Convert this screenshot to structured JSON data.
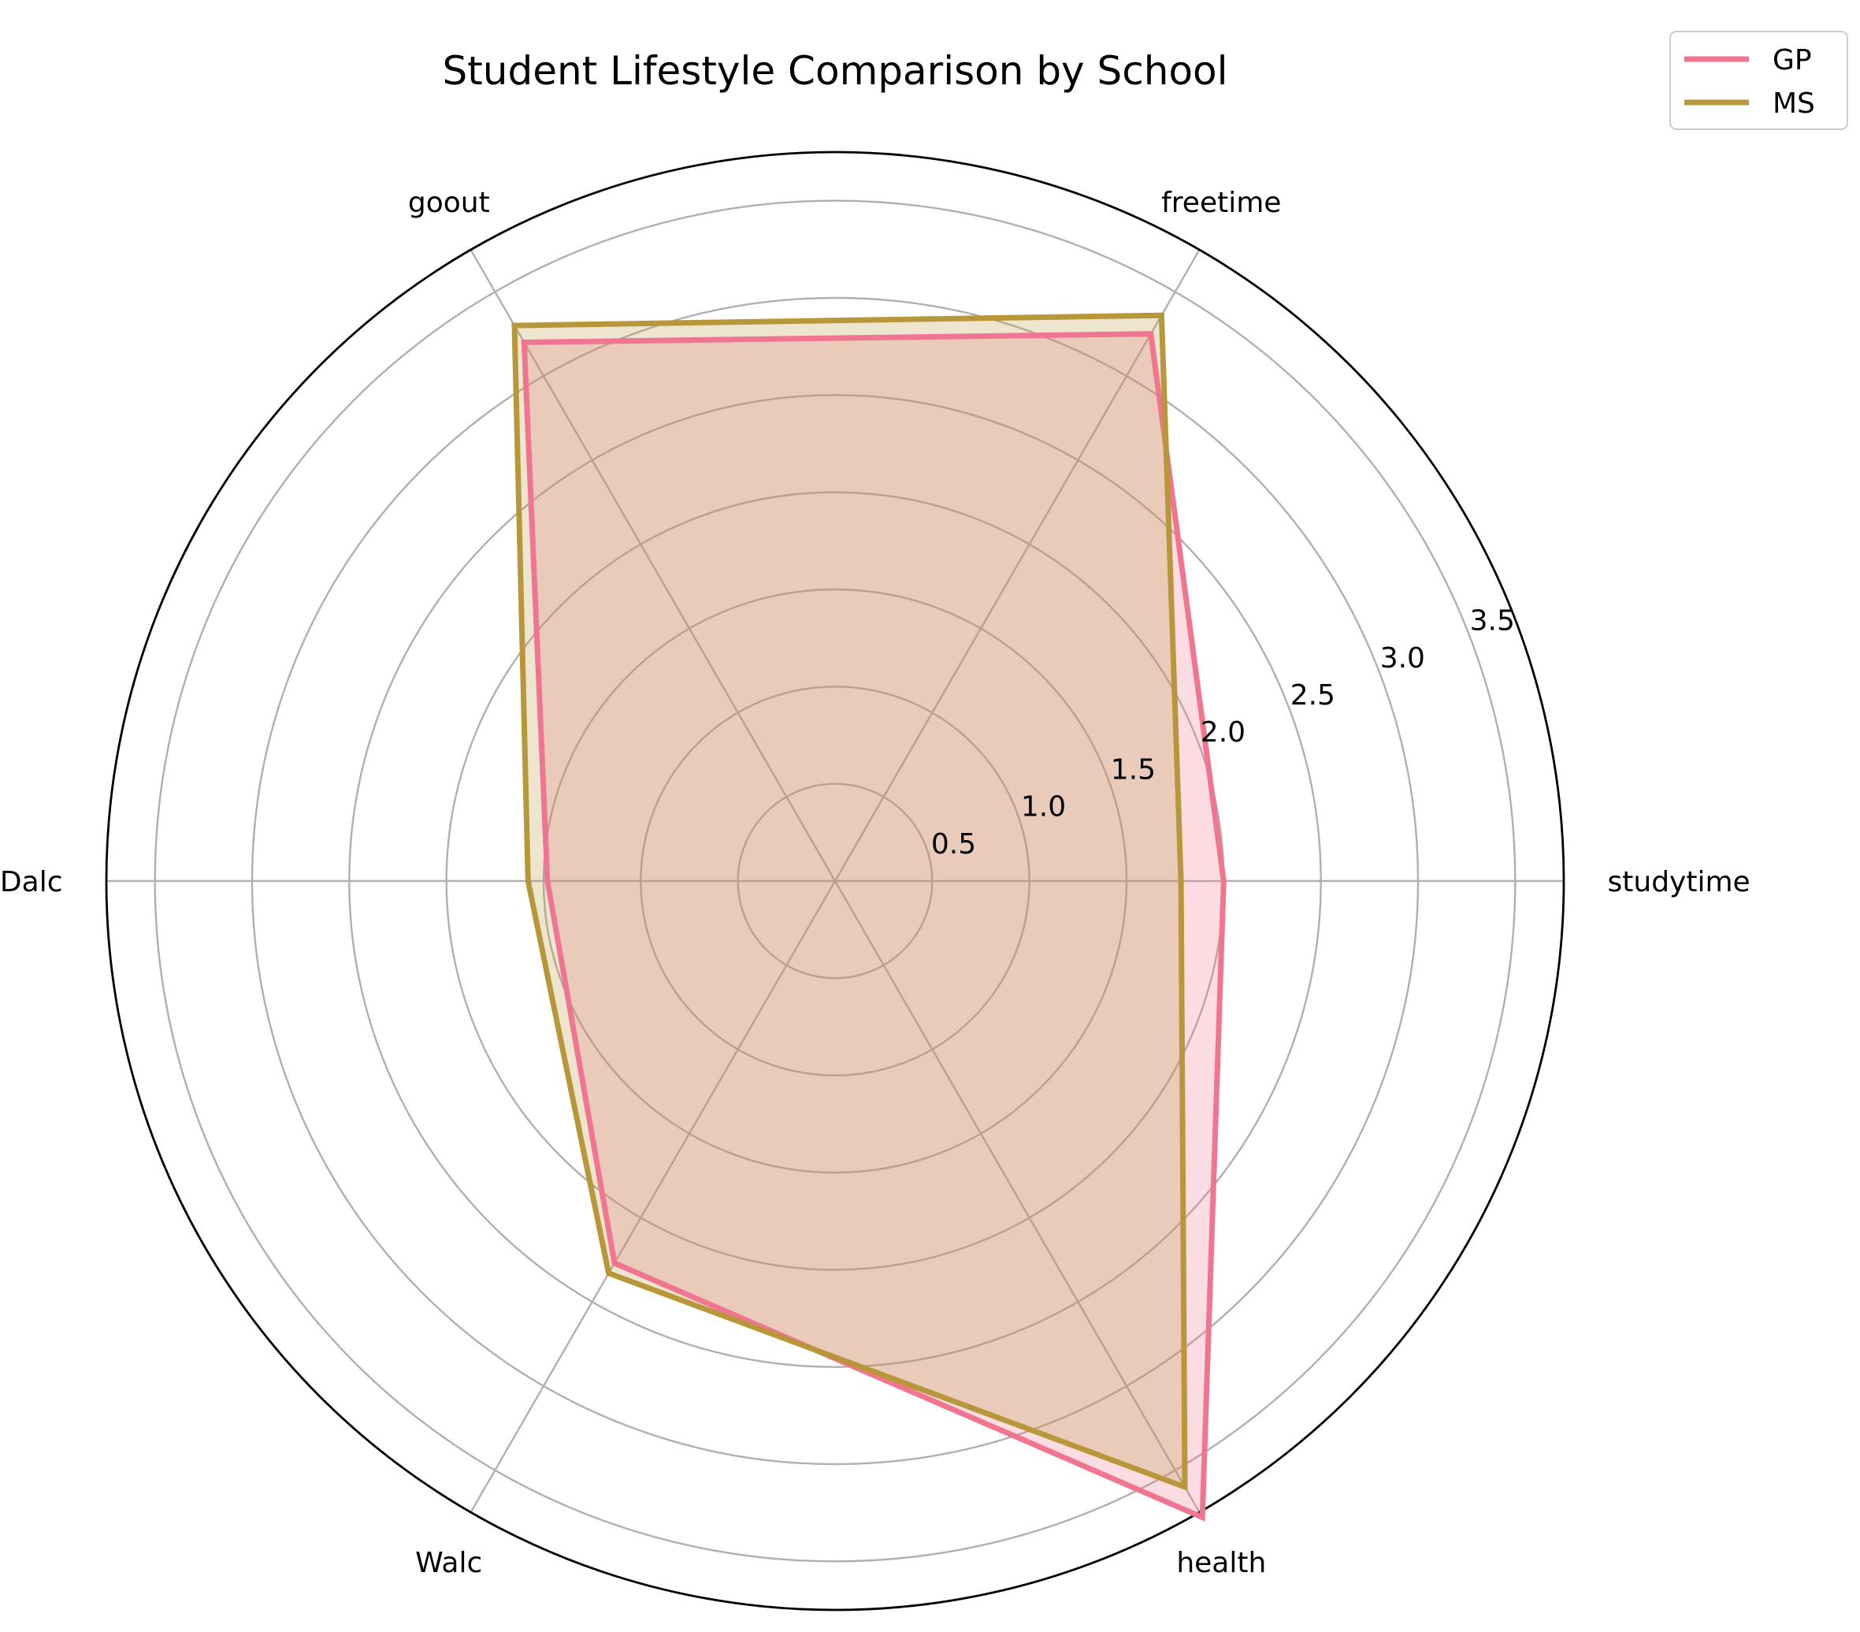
{
  "chart_data": {
    "type": "radar",
    "title": "Student Lifestyle Comparison by School",
    "categories": [
      "studytime",
      "freetime",
      "goout",
      "Dalc",
      "Walc",
      "health"
    ],
    "rlim": [
      0,
      3.75
    ],
    "rticks": [
      0.5,
      1.0,
      1.5,
      2.0,
      2.5,
      3.0,
      3.5
    ],
    "rtick_labels": [
      "0.5",
      "1.0",
      "1.5",
      "2.0",
      "2.5",
      "3.0",
      "3.5"
    ],
    "grid": true,
    "legend_position": "top-right",
    "series": [
      {
        "name": "GP",
        "values": [
          2.0,
          3.25,
          3.2,
          1.48,
          2.27,
          3.78
        ],
        "color": "#f07590"
      },
      {
        "name": "MS",
        "values": [
          1.78,
          3.36,
          3.3,
          1.58,
          2.33,
          3.6
        ],
        "color": "#b8963a"
      }
    ]
  }
}
